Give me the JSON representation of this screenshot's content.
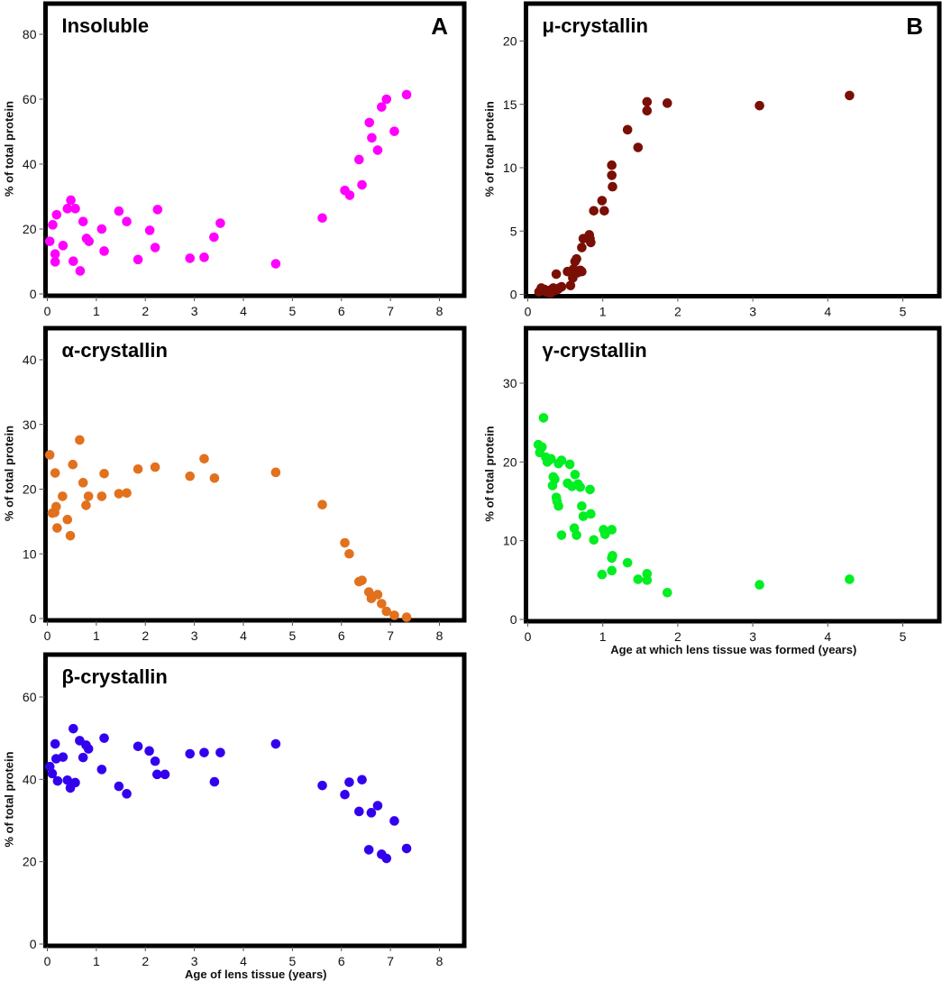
{
  "figure": {
    "ylabel": "% of total protein",
    "xlabel_left": "Age of lens tissue (years)",
    "xlabel_right": "Age at which lens tissue was formed (years)"
  },
  "chart_data": [
    {
      "id": "insoluble",
      "type": "scatter",
      "title": "Insoluble",
      "panel_letter": "A",
      "color": "#ff00ff",
      "xlabel": "",
      "ylabel": "% of total protein",
      "xlim": [
        0,
        8.5
      ],
      "ylim": [
        0,
        88
      ],
      "xticks": [
        0,
        1,
        2,
        3,
        4,
        5,
        6,
        7,
        8
      ],
      "yticks": [
        0,
        20,
        40,
        60,
        80
      ],
      "grid": false,
      "points": [
        [
          0.05,
          16.2
        ],
        [
          0.11,
          21.3
        ],
        [
          0.19,
          24.4
        ],
        [
          0.16,
          12.3
        ],
        [
          0.16,
          9.9
        ],
        [
          0.32,
          14.9
        ],
        [
          0.41,
          26.3
        ],
        [
          0.48,
          28.9
        ],
        [
          0.57,
          26.3
        ],
        [
          0.53,
          10.1
        ],
        [
          0.67,
          7.1
        ],
        [
          0.73,
          22.3
        ],
        [
          0.8,
          17.1
        ],
        [
          0.85,
          16.2
        ],
        [
          1.11,
          20.0
        ],
        [
          1.16,
          13.2
        ],
        [
          1.46,
          25.5
        ],
        [
          1.62,
          22.3
        ],
        [
          1.85,
          10.6
        ],
        [
          2.09,
          19.6
        ],
        [
          2.2,
          14.3
        ],
        [
          2.25,
          26.0
        ],
        [
          2.91,
          11.0
        ],
        [
          3.2,
          11.3
        ],
        [
          3.4,
          17.5
        ],
        [
          3.53,
          21.8
        ],
        [
          4.66,
          9.3
        ],
        [
          5.61,
          23.4
        ],
        [
          6.07,
          31.9
        ],
        [
          6.17,
          30.4
        ],
        [
          6.36,
          41.4
        ],
        [
          6.42,
          33.6
        ],
        [
          6.57,
          52.8
        ],
        [
          6.62,
          48.1
        ],
        [
          6.74,
          44.3
        ],
        [
          6.82,
          57.6
        ],
        [
          6.92,
          60.0
        ],
        [
          7.08,
          50.1
        ],
        [
          7.33,
          61.4
        ]
      ]
    },
    {
      "id": "mu",
      "type": "scatter",
      "title": "μ-crystallin",
      "panel_letter": "B",
      "color": "#7a0f05",
      "xlabel": "",
      "ylabel": "% of total protein",
      "xlim": [
        0,
        5.5
      ],
      "ylim": [
        0,
        23
      ],
      "xticks": [
        0,
        1,
        2,
        3,
        4,
        5
      ],
      "yticks": [
        0,
        5,
        10,
        15,
        20
      ],
      "grid": false,
      "points": [
        [
          0.15,
          0.2
        ],
        [
          0.18,
          0.5
        ],
        [
          0.2,
          0.3
        ],
        [
          0.22,
          0.4
        ],
        [
          0.25,
          0.2
        ],
        [
          0.27,
          0.3
        ],
        [
          0.3,
          0.1
        ],
        [
          0.32,
          0.4
        ],
        [
          0.34,
          0.5
        ],
        [
          0.36,
          0.3
        ],
        [
          0.38,
          1.6
        ],
        [
          0.4,
          0.4
        ],
        [
          0.42,
          0.5
        ],
        [
          0.45,
          0.6
        ],
        [
          0.53,
          1.8
        ],
        [
          0.57,
          0.7
        ],
        [
          0.6,
          1.3
        ],
        [
          0.61,
          2.0
        ],
        [
          0.63,
          2.6
        ],
        [
          0.65,
          2.8
        ],
        [
          0.66,
          1.7
        ],
        [
          0.7,
          1.9
        ],
        [
          0.72,
          1.8
        ],
        [
          0.72,
          3.7
        ],
        [
          0.74,
          4.4
        ],
        [
          0.82,
          4.7
        ],
        [
          0.83,
          4.4
        ],
        [
          0.84,
          4.1
        ],
        [
          0.88,
          6.6
        ],
        [
          0.99,
          7.4
        ],
        [
          1.02,
          6.6
        ],
        [
          1.12,
          10.2
        ],
        [
          1.12,
          9.4
        ],
        [
          1.13,
          8.5
        ],
        [
          1.33,
          13.0
        ],
        [
          1.47,
          11.6
        ],
        [
          1.59,
          15.2
        ],
        [
          1.59,
          14.5
        ],
        [
          1.86,
          15.1
        ],
        [
          3.09,
          14.9
        ],
        [
          4.29,
          15.7
        ]
      ]
    },
    {
      "id": "alpha",
      "type": "scatter",
      "title": "α-crystallin",
      "panel_letter": "",
      "color": "#e2711d",
      "xlabel": "",
      "ylabel": "% of total protein",
      "xlim": [
        0,
        8.5
      ],
      "ylim": [
        0,
        45
      ],
      "xticks": [
        0,
        1,
        2,
        3,
        4,
        5,
        6,
        7,
        8
      ],
      "yticks": [
        0,
        10,
        20,
        30,
        40
      ],
      "grid": false,
      "points": [
        [
          0.05,
          25.3
        ],
        [
          0.1,
          16.3
        ],
        [
          0.15,
          16.4
        ],
        [
          0.16,
          22.5
        ],
        [
          0.18,
          17.3
        ],
        [
          0.2,
          14.0
        ],
        [
          0.31,
          18.9
        ],
        [
          0.41,
          15.3
        ],
        [
          0.47,
          12.8
        ],
        [
          0.52,
          23.8
        ],
        [
          0.66,
          27.6
        ],
        [
          0.73,
          21.0
        ],
        [
          0.79,
          17.5
        ],
        [
          0.84,
          18.9
        ],
        [
          1.11,
          18.9
        ],
        [
          1.16,
          22.4
        ],
        [
          1.46,
          19.3
        ],
        [
          1.62,
          19.4
        ],
        [
          1.85,
          23.1
        ],
        [
          2.2,
          23.4
        ],
        [
          2.91,
          22.0
        ],
        [
          3.2,
          24.7
        ],
        [
          3.41,
          21.7
        ],
        [
          4.66,
          22.6
        ],
        [
          5.61,
          17.6
        ],
        [
          6.07,
          11.7
        ],
        [
          6.16,
          10.0
        ],
        [
          6.36,
          5.7
        ],
        [
          6.42,
          5.9
        ],
        [
          6.56,
          4.1
        ],
        [
          6.61,
          3.1
        ],
        [
          6.74,
          3.7
        ],
        [
          6.82,
          2.3
        ],
        [
          6.92,
          1.1
        ],
        [
          7.08,
          0.5
        ],
        [
          7.33,
          0.2
        ]
      ]
    },
    {
      "id": "gamma",
      "type": "scatter",
      "title": "γ-crystallin",
      "panel_letter": "",
      "color": "#00ee22",
      "xlabel": "Age at which lens tissue was formed (years)",
      "ylabel": "% of total protein",
      "xlim": [
        0,
        5.5
      ],
      "ylim": [
        0,
        36
      ],
      "xticks": [
        0,
        1,
        2,
        3,
        4,
        5
      ],
      "yticks": [
        0,
        10,
        20,
        30
      ],
      "grid": false,
      "points": [
        [
          0.14,
          22.2
        ],
        [
          0.16,
          21.2
        ],
        [
          0.19,
          21.9
        ],
        [
          0.21,
          25.6
        ],
        [
          0.24,
          20.6
        ],
        [
          0.26,
          20.0
        ],
        [
          0.28,
          20.2
        ],
        [
          0.31,
          20.4
        ],
        [
          0.33,
          17.0
        ],
        [
          0.34,
          18.1
        ],
        [
          0.36,
          17.8
        ],
        [
          0.38,
          15.5
        ],
        [
          0.39,
          15.0
        ],
        [
          0.41,
          14.4
        ],
        [
          0.41,
          19.8
        ],
        [
          0.45,
          20.2
        ],
        [
          0.45,
          10.7
        ],
        [
          0.56,
          19.7
        ],
        [
          0.53,
          17.3
        ],
        [
          0.59,
          16.9
        ],
        [
          0.63,
          18.4
        ],
        [
          0.67,
          17.2
        ],
        [
          0.7,
          16.8
        ],
        [
          0.62,
          11.6
        ],
        [
          0.65,
          10.7
        ],
        [
          0.72,
          14.4
        ],
        [
          0.74,
          13.1
        ],
        [
          0.83,
          16.5
        ],
        [
          0.84,
          13.4
        ],
        [
          0.88,
          10.1
        ],
        [
          0.99,
          5.7
        ],
        [
          1.01,
          11.4
        ],
        [
          1.03,
          10.8
        ],
        [
          1.12,
          11.4
        ],
        [
          1.13,
          8.1
        ],
        [
          1.12,
          7.8
        ],
        [
          1.12,
          6.2
        ],
        [
          1.33,
          7.2
        ],
        [
          1.47,
          5.1
        ],
        [
          1.59,
          5.8
        ],
        [
          1.59,
          5.0
        ],
        [
          1.86,
          3.4
        ],
        [
          3.09,
          4.4
        ],
        [
          4.29,
          5.1
        ]
      ]
    },
    {
      "id": "beta",
      "type": "scatter",
      "title": "β-crystallin",
      "panel_letter": "",
      "color": "#3300ee",
      "xlabel": "Age of lens tissue (years)",
      "ylabel": "% of total protein",
      "xlim": [
        0,
        8.5
      ],
      "ylim": [
        0,
        70
      ],
      "xticks": [
        0,
        1,
        2,
        3,
        4,
        5,
        6,
        7,
        8
      ],
      "yticks": [
        0,
        20,
        40,
        60
      ],
      "grid": false,
      "points": [
        [
          0.05,
          43.1
        ],
        [
          0.1,
          41.4
        ],
        [
          0.16,
          48.6
        ],
        [
          0.18,
          45.0
        ],
        [
          0.21,
          39.6
        ],
        [
          0.32,
          45.4
        ],
        [
          0.41,
          39.8
        ],
        [
          0.47,
          37.9
        ],
        [
          0.53,
          52.3
        ],
        [
          0.57,
          39.2
        ],
        [
          0.66,
          49.4
        ],
        [
          0.73,
          45.3
        ],
        [
          0.79,
          48.3
        ],
        [
          0.84,
          47.4
        ],
        [
          1.11,
          42.4
        ],
        [
          1.16,
          50.0
        ],
        [
          1.46,
          38.3
        ],
        [
          1.62,
          36.5
        ],
        [
          1.85,
          48.0
        ],
        [
          2.08,
          46.9
        ],
        [
          2.2,
          44.4
        ],
        [
          2.24,
          41.2
        ],
        [
          2.4,
          41.2
        ],
        [
          2.91,
          46.2
        ],
        [
          3.2,
          46.5
        ],
        [
          3.41,
          39.4
        ],
        [
          3.53,
          46.5
        ],
        [
          4.66,
          48.6
        ],
        [
          5.61,
          38.5
        ],
        [
          6.07,
          36.3
        ],
        [
          6.16,
          39.3
        ],
        [
          6.36,
          32.2
        ],
        [
          6.42,
          39.9
        ],
        [
          6.56,
          22.9
        ],
        [
          6.61,
          31.9
        ],
        [
          6.74,
          33.6
        ],
        [
          6.82,
          21.8
        ],
        [
          6.92,
          20.8
        ],
        [
          7.08,
          29.9
        ],
        [
          7.33,
          23.2
        ]
      ]
    }
  ]
}
